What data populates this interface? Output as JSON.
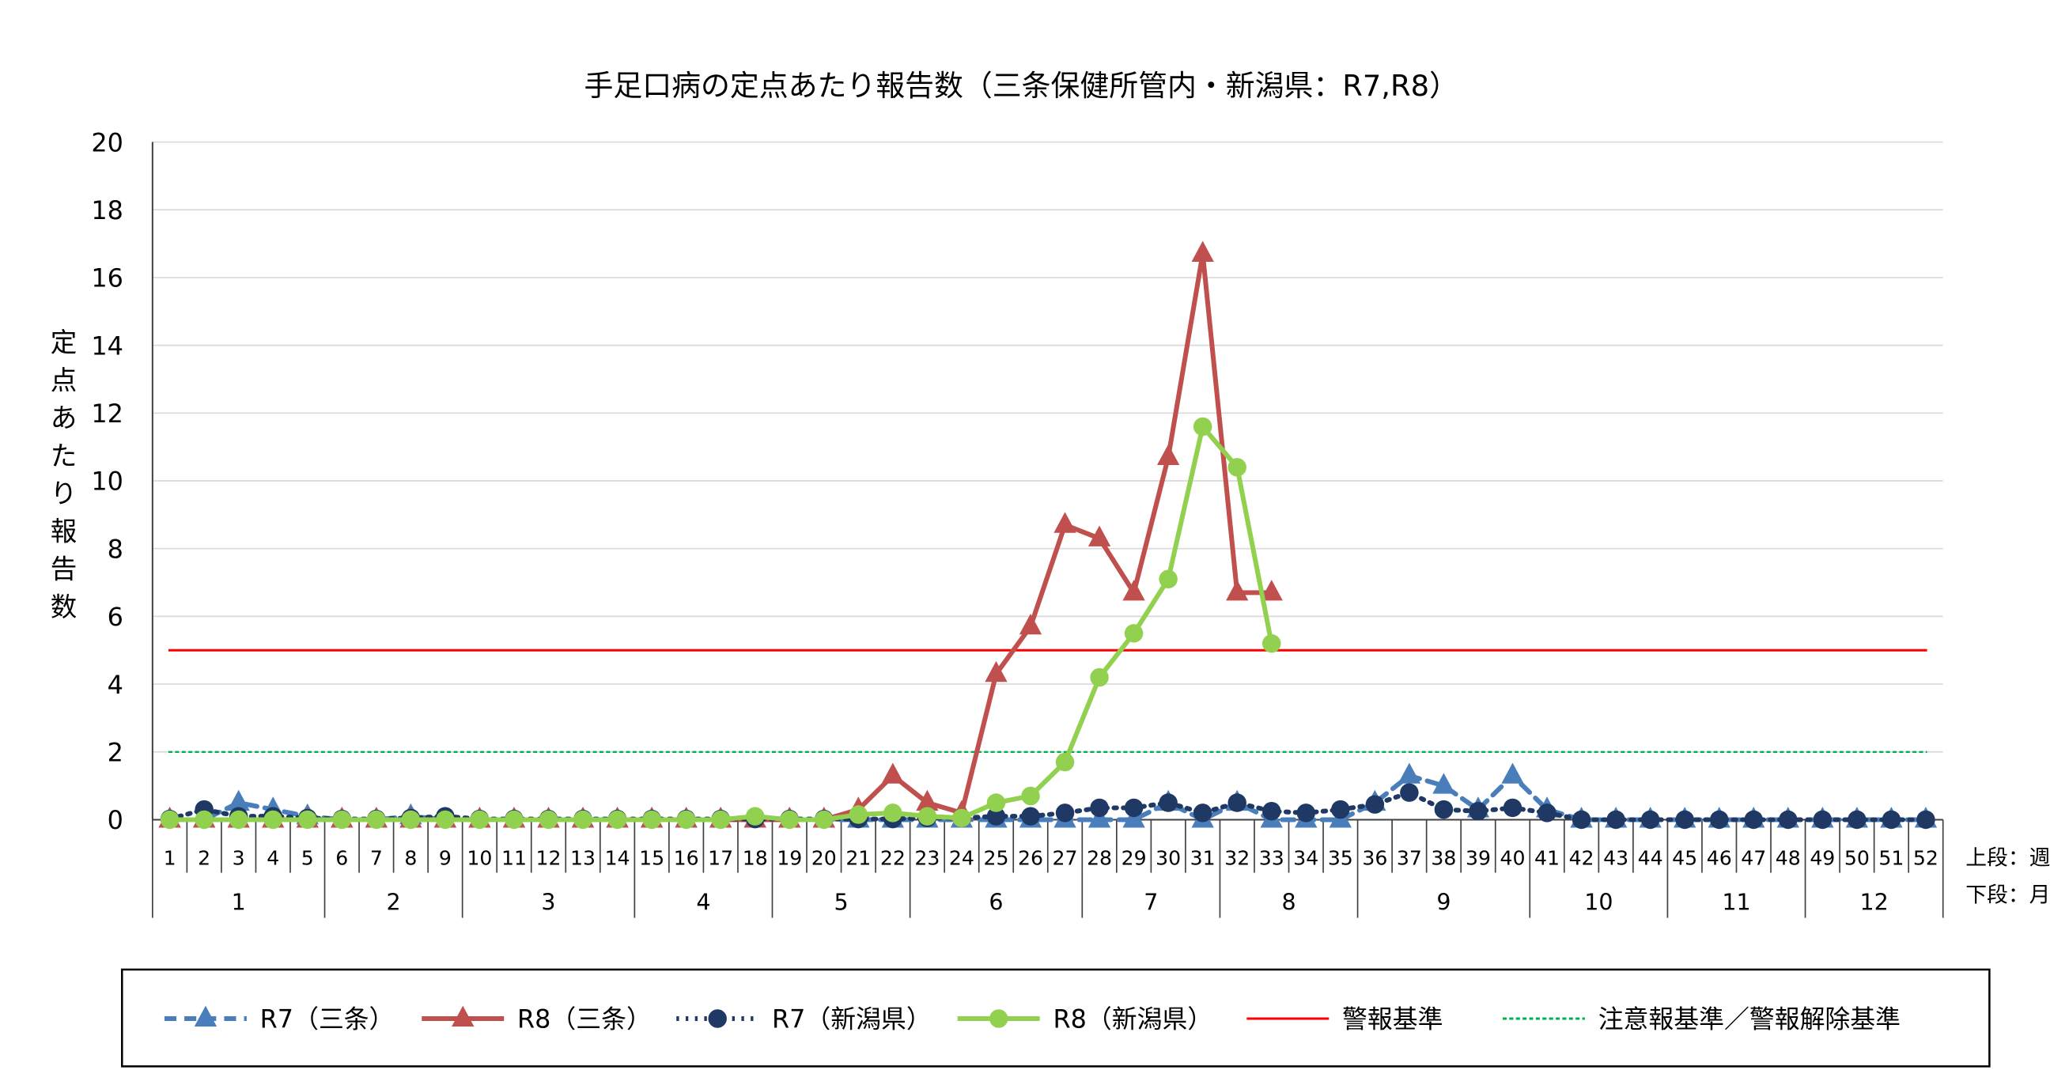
{
  "chart_data": {
    "type": "line",
    "title": "手足口病の定点あたり報告数（三条保健所管内・新潟県：R7,R8）",
    "ylabel": "定点あたり報告数",
    "ylim": [
      0,
      20
    ],
    "yticks": [
      0,
      2,
      4,
      6,
      8,
      10,
      12,
      14,
      16,
      18,
      20
    ],
    "grid": true,
    "legend_position": "bottom",
    "axis_note_upper": "上段：週",
    "axis_note_lower": "下段：月",
    "weeks": [
      1,
      2,
      3,
      4,
      5,
      6,
      7,
      8,
      9,
      10,
      11,
      12,
      13,
      14,
      15,
      16,
      17,
      18,
      19,
      20,
      21,
      22,
      23,
      24,
      25,
      26,
      27,
      28,
      29,
      30,
      31,
      32,
      33,
      34,
      35,
      36,
      37,
      38,
      39,
      40,
      41,
      42,
      43,
      44,
      45,
      46,
      47,
      48,
      49,
      50,
      51,
      52
    ],
    "months": [
      {
        "label": "1",
        "start_week": 1,
        "end_week": 5
      },
      {
        "label": "2",
        "start_week": 6,
        "end_week": 9
      },
      {
        "label": "3",
        "start_week": 10,
        "end_week": 14
      },
      {
        "label": "4",
        "start_week": 15,
        "end_week": 18
      },
      {
        "label": "5",
        "start_week": 19,
        "end_week": 22
      },
      {
        "label": "6",
        "start_week": 23,
        "end_week": 27
      },
      {
        "label": "7",
        "start_week": 28,
        "end_week": 31
      },
      {
        "label": "8",
        "start_week": 32,
        "end_week": 35
      },
      {
        "label": "9",
        "start_week": 36,
        "end_week": 40
      },
      {
        "label": "10",
        "start_week": 41,
        "end_week": 44
      },
      {
        "label": "11",
        "start_week": 45,
        "end_week": 48
      },
      {
        "label": "12",
        "start_week": 49,
        "end_week": 52
      }
    ],
    "series": [
      {
        "name": "R7（三条）",
        "color": "#4a7ebb",
        "style": "dashed",
        "marker": "triangle",
        "values": [
          0,
          0,
          0.5,
          0.3,
          0.1,
          0,
          0,
          0.1,
          0,
          0,
          0,
          0,
          0,
          0,
          0,
          0,
          0,
          0,
          0,
          0,
          0,
          0,
          0,
          0,
          0,
          0,
          0,
          0,
          0,
          0.5,
          0,
          0.5,
          0,
          0,
          0,
          0.5,
          1.3,
          1.0,
          0.3,
          1.3,
          0.3,
          0,
          0,
          0,
          0,
          0,
          0,
          0,
          0,
          0,
          0,
          0
        ]
      },
      {
        "name": "R8（三条）",
        "color": "#c0504d",
        "style": "solid",
        "marker": "triangle",
        "values": [
          0,
          0,
          0,
          0,
          0,
          0,
          0,
          0,
          0,
          0,
          0,
          0,
          0,
          0,
          0,
          0,
          0,
          0,
          0,
          0,
          0.3,
          1.3,
          0.5,
          0.2,
          4.3,
          5.7,
          8.7,
          8.3,
          6.7,
          10.7,
          16.7,
          6.7,
          6.7,
          null,
          null,
          null,
          null,
          null,
          null,
          null,
          null,
          null,
          null,
          null,
          null,
          null,
          null,
          null,
          null,
          null,
          null,
          null
        ]
      },
      {
        "name": "R7（新潟県）",
        "color": "#1f3864",
        "style": "dotted",
        "marker": "circle",
        "values": [
          0.02,
          0.3,
          0.1,
          0.1,
          0.05,
          0.02,
          0.02,
          0.05,
          0.1,
          0.02,
          0.02,
          0.02,
          0.02,
          0.02,
          0.02,
          0.02,
          0.02,
          0.02,
          0.02,
          0.02,
          0.02,
          0.02,
          0.05,
          0.05,
          0.1,
          0.1,
          0.2,
          0.35,
          0.35,
          0.5,
          0.2,
          0.5,
          0.25,
          0.2,
          0.3,
          0.45,
          0.8,
          0.3,
          0.25,
          0.35,
          0.2,
          0,
          0,
          0,
          0,
          0,
          0,
          0,
          0,
          0,
          0,
          0
        ]
      },
      {
        "name": "R8（新潟県）",
        "color": "#92d050",
        "style": "solid",
        "marker": "circle",
        "values": [
          0,
          0,
          0,
          0,
          0,
          0,
          0,
          0,
          0,
          0,
          0,
          0,
          0,
          0,
          0,
          0,
          0,
          0.1,
          0,
          0,
          0.15,
          0.2,
          0.1,
          0.05,
          0.5,
          0.7,
          1.7,
          4.2,
          5.5,
          7.1,
          11.6,
          10.4,
          5.2,
          null,
          null,
          null,
          null,
          null,
          null,
          null,
          null,
          null,
          null,
          null,
          null,
          null,
          null,
          null,
          null,
          null,
          null,
          null
        ]
      },
      {
        "name": "警報基準",
        "color": "#ff0000",
        "style": "solid",
        "marker": "none",
        "constant": 5
      },
      {
        "name": "注意報基準／警報解除基準",
        "color": "#00b050",
        "style": "dotted",
        "marker": "none",
        "constant": 2
      }
    ]
  }
}
